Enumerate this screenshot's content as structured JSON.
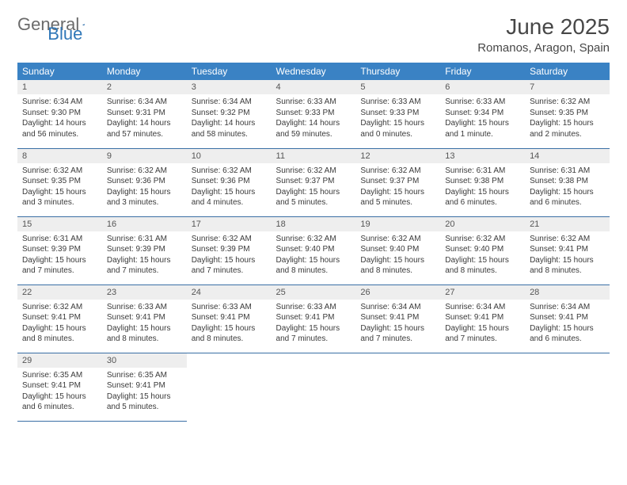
{
  "logo": {
    "part1": "General",
    "part2": "Blue"
  },
  "title": "June 2025",
  "location": "Romanos, Aragon, Spain",
  "colors": {
    "header_bg": "#3a82c4",
    "header_text": "#ffffff",
    "daynum_bg": "#eeeeee",
    "row_border": "#3a6fa5",
    "logo_gray": "#6b6b6b",
    "logo_blue": "#2f77b8"
  },
  "weekdays": [
    "Sunday",
    "Monday",
    "Tuesday",
    "Wednesday",
    "Thursday",
    "Friday",
    "Saturday"
  ],
  "weeks": [
    [
      {
        "n": "1",
        "sunrise": "Sunrise: 6:34 AM",
        "sunset": "Sunset: 9:30 PM",
        "day": "Daylight: 14 hours and 56 minutes."
      },
      {
        "n": "2",
        "sunrise": "Sunrise: 6:34 AM",
        "sunset": "Sunset: 9:31 PM",
        "day": "Daylight: 14 hours and 57 minutes."
      },
      {
        "n": "3",
        "sunrise": "Sunrise: 6:34 AM",
        "sunset": "Sunset: 9:32 PM",
        "day": "Daylight: 14 hours and 58 minutes."
      },
      {
        "n": "4",
        "sunrise": "Sunrise: 6:33 AM",
        "sunset": "Sunset: 9:33 PM",
        "day": "Daylight: 14 hours and 59 minutes."
      },
      {
        "n": "5",
        "sunrise": "Sunrise: 6:33 AM",
        "sunset": "Sunset: 9:33 PM",
        "day": "Daylight: 15 hours and 0 minutes."
      },
      {
        "n": "6",
        "sunrise": "Sunrise: 6:33 AM",
        "sunset": "Sunset: 9:34 PM",
        "day": "Daylight: 15 hours and 1 minute."
      },
      {
        "n": "7",
        "sunrise": "Sunrise: 6:32 AM",
        "sunset": "Sunset: 9:35 PM",
        "day": "Daylight: 15 hours and 2 minutes."
      }
    ],
    [
      {
        "n": "8",
        "sunrise": "Sunrise: 6:32 AM",
        "sunset": "Sunset: 9:35 PM",
        "day": "Daylight: 15 hours and 3 minutes."
      },
      {
        "n": "9",
        "sunrise": "Sunrise: 6:32 AM",
        "sunset": "Sunset: 9:36 PM",
        "day": "Daylight: 15 hours and 3 minutes."
      },
      {
        "n": "10",
        "sunrise": "Sunrise: 6:32 AM",
        "sunset": "Sunset: 9:36 PM",
        "day": "Daylight: 15 hours and 4 minutes."
      },
      {
        "n": "11",
        "sunrise": "Sunrise: 6:32 AM",
        "sunset": "Sunset: 9:37 PM",
        "day": "Daylight: 15 hours and 5 minutes."
      },
      {
        "n": "12",
        "sunrise": "Sunrise: 6:32 AM",
        "sunset": "Sunset: 9:37 PM",
        "day": "Daylight: 15 hours and 5 minutes."
      },
      {
        "n": "13",
        "sunrise": "Sunrise: 6:31 AM",
        "sunset": "Sunset: 9:38 PM",
        "day": "Daylight: 15 hours and 6 minutes."
      },
      {
        "n": "14",
        "sunrise": "Sunrise: 6:31 AM",
        "sunset": "Sunset: 9:38 PM",
        "day": "Daylight: 15 hours and 6 minutes."
      }
    ],
    [
      {
        "n": "15",
        "sunrise": "Sunrise: 6:31 AM",
        "sunset": "Sunset: 9:39 PM",
        "day": "Daylight: 15 hours and 7 minutes."
      },
      {
        "n": "16",
        "sunrise": "Sunrise: 6:31 AM",
        "sunset": "Sunset: 9:39 PM",
        "day": "Daylight: 15 hours and 7 minutes."
      },
      {
        "n": "17",
        "sunrise": "Sunrise: 6:32 AM",
        "sunset": "Sunset: 9:39 PM",
        "day": "Daylight: 15 hours and 7 minutes."
      },
      {
        "n": "18",
        "sunrise": "Sunrise: 6:32 AM",
        "sunset": "Sunset: 9:40 PM",
        "day": "Daylight: 15 hours and 8 minutes."
      },
      {
        "n": "19",
        "sunrise": "Sunrise: 6:32 AM",
        "sunset": "Sunset: 9:40 PM",
        "day": "Daylight: 15 hours and 8 minutes."
      },
      {
        "n": "20",
        "sunrise": "Sunrise: 6:32 AM",
        "sunset": "Sunset: 9:40 PM",
        "day": "Daylight: 15 hours and 8 minutes."
      },
      {
        "n": "21",
        "sunrise": "Sunrise: 6:32 AM",
        "sunset": "Sunset: 9:41 PM",
        "day": "Daylight: 15 hours and 8 minutes."
      }
    ],
    [
      {
        "n": "22",
        "sunrise": "Sunrise: 6:32 AM",
        "sunset": "Sunset: 9:41 PM",
        "day": "Daylight: 15 hours and 8 minutes."
      },
      {
        "n": "23",
        "sunrise": "Sunrise: 6:33 AM",
        "sunset": "Sunset: 9:41 PM",
        "day": "Daylight: 15 hours and 8 minutes."
      },
      {
        "n": "24",
        "sunrise": "Sunrise: 6:33 AM",
        "sunset": "Sunset: 9:41 PM",
        "day": "Daylight: 15 hours and 8 minutes."
      },
      {
        "n": "25",
        "sunrise": "Sunrise: 6:33 AM",
        "sunset": "Sunset: 9:41 PM",
        "day": "Daylight: 15 hours and 7 minutes."
      },
      {
        "n": "26",
        "sunrise": "Sunrise: 6:34 AM",
        "sunset": "Sunset: 9:41 PM",
        "day": "Daylight: 15 hours and 7 minutes."
      },
      {
        "n": "27",
        "sunrise": "Sunrise: 6:34 AM",
        "sunset": "Sunset: 9:41 PM",
        "day": "Daylight: 15 hours and 7 minutes."
      },
      {
        "n": "28",
        "sunrise": "Sunrise: 6:34 AM",
        "sunset": "Sunset: 9:41 PM",
        "day": "Daylight: 15 hours and 6 minutes."
      }
    ],
    [
      {
        "n": "29",
        "sunrise": "Sunrise: 6:35 AM",
        "sunset": "Sunset: 9:41 PM",
        "day": "Daylight: 15 hours and 6 minutes."
      },
      {
        "n": "30",
        "sunrise": "Sunrise: 6:35 AM",
        "sunset": "Sunset: 9:41 PM",
        "day": "Daylight: 15 hours and 5 minutes."
      },
      null,
      null,
      null,
      null,
      null
    ]
  ]
}
